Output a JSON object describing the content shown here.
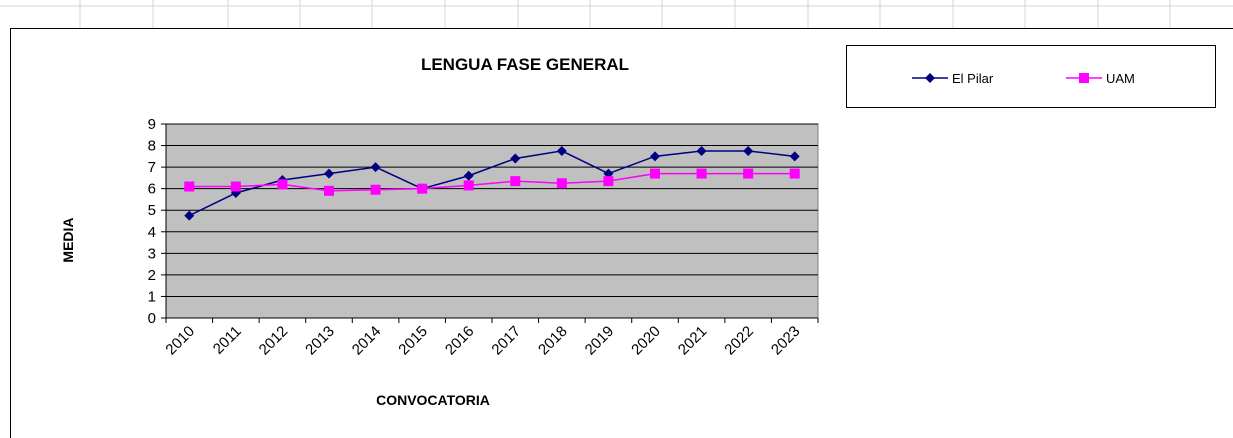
{
  "chart_data": {
    "type": "line",
    "title": "LENGUA FASE GENERAL",
    "x_label": "CONVOCATORIA",
    "y_label": "MEDIA",
    "categories": [
      "2010",
      "2011",
      "2012",
      "2013",
      "2014",
      "2015",
      "2016",
      "2017",
      "2018",
      "2019",
      "2020",
      "2021",
      "2022",
      "2023"
    ],
    "series": [
      {
        "name": "El Pilar",
        "color": "#000080",
        "marker": "diamond",
        "values": [
          4.75,
          5.8,
          6.4,
          6.7,
          7.0,
          6.0,
          6.6,
          7.4,
          7.75,
          6.7,
          7.5,
          7.75,
          7.75,
          7.5
        ]
      },
      {
        "name": "UAM",
        "color": "#ff00ff",
        "marker": "square",
        "values": [
          6.1,
          6.1,
          6.2,
          5.9,
          5.95,
          6.0,
          6.15,
          6.35,
          6.25,
          6.35,
          6.7,
          6.7,
          6.7,
          6.7
        ]
      }
    ],
    "ylim": [
      0,
      9
    ],
    "yticks": [
      0,
      1,
      2,
      3,
      4,
      5,
      6,
      7,
      8,
      9
    ],
    "grid": true,
    "legend": "top-right"
  }
}
